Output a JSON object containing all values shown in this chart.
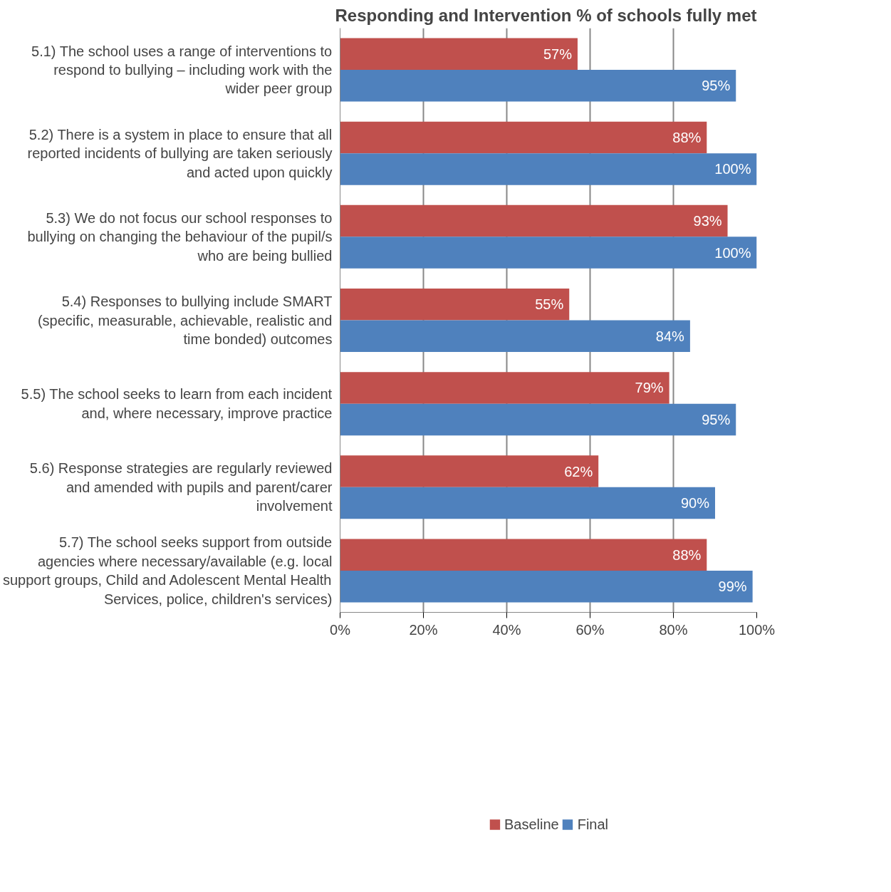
{
  "chart_data": {
    "type": "bar",
    "orientation": "horizontal",
    "title": "Responding and Intervention % of schools fully met",
    "categories": [
      "5.1) The school uses a range of interventions to respond to bullying – including work with the wider peer group",
      "5.2) There is a system in place to ensure that all reported incidents of bullying are taken seriously and acted upon quickly",
      "5.3) We do not focus our school responses to bullying on changing the behaviour of the pupil/s who are being bullied",
      "5.4) Responses to bullying include SMART (specific, measurable, achievable, realistic and time bonded) outcomes",
      "5.5) The school seeks to learn from each incident and, where necessary, improve practice",
      "5.6) Response strategies are regularly reviewed and amended with pupils and parent/carer involvement",
      "5.7) The school seeks support from outside agencies where necessary/available (e.g. local support groups, Child and Adolescent Mental Health Services, police, children's services)"
    ],
    "series": [
      {
        "name": "Baseline",
        "color": "#c0504d",
        "values": [
          57,
          88,
          93,
          55,
          79,
          62,
          88
        ],
        "value_labels": [
          "57%",
          "88%",
          "93%",
          "55%",
          "79%",
          "62%",
          "88%"
        ]
      },
      {
        "name": "Final",
        "color": "#4f81bd",
        "values": [
          95,
          100,
          100,
          84,
          95,
          90,
          99
        ],
        "value_labels": [
          "95%",
          "100%",
          "100%",
          "84%",
          "95%",
          "90%",
          "99%"
        ]
      }
    ],
    "xlim": [
      0,
      100
    ],
    "xticks": [
      {
        "value": 0,
        "label": "0%"
      },
      {
        "value": 20,
        "label": "20%"
      },
      {
        "value": 40,
        "label": "40%"
      },
      {
        "value": 60,
        "label": "60%"
      },
      {
        "value": 80,
        "label": "80%"
      },
      {
        "value": 100,
        "label": "100%"
      }
    ],
    "grid": "x",
    "legend": "bottom"
  }
}
